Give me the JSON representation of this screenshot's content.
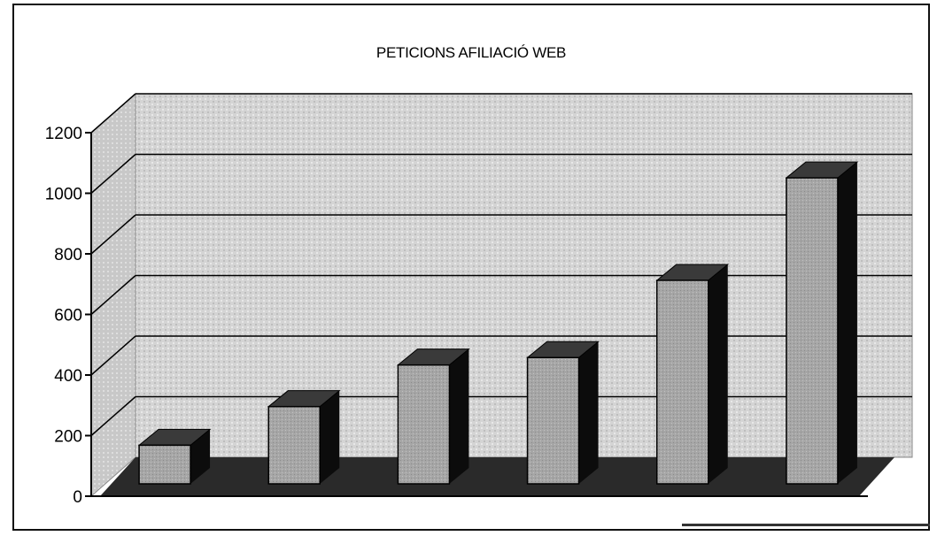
{
  "chart_data": {
    "type": "bar",
    "title": "PETICIONS AFILIACIÓ WEB",
    "xlabel": "",
    "ylabel": "",
    "categories": [
      "",
      "",
      "",
      "",
      "",
      ""
    ],
    "values": [
      130,
      260,
      400,
      425,
      685,
      1030
    ],
    "ylim": [
      0,
      1200
    ],
    "yticks": [
      "0",
      "200",
      "400",
      "600",
      "800",
      "1000",
      "1200"
    ],
    "grid": true,
    "style": "3d-column",
    "colors": {
      "wall": "#d6d6d6",
      "bar_front": "#a4a4a4",
      "bar_side": "#0c0c0c",
      "bar_top": "#3a3a3a",
      "floor": "#2a2a2a",
      "gridline": "#000000"
    }
  }
}
